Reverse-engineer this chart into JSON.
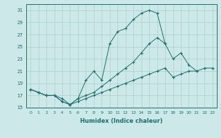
{
  "xlabel": "Humidex (Indice chaleur)",
  "background_color": "#cce8e8",
  "grid_color": "#aacece",
  "line_color": "#1a6e6a",
  "xlim": [
    -0.5,
    23.5
  ],
  "ylim": [
    15,
    32
  ],
  "yticks": [
    15,
    17,
    19,
    21,
    23,
    25,
    27,
    29,
    31
  ],
  "xticks": [
    0,
    1,
    2,
    3,
    4,
    5,
    6,
    7,
    8,
    9,
    10,
    11,
    12,
    13,
    14,
    15,
    16,
    17,
    18,
    19,
    20,
    21,
    22,
    23
  ],
  "curve_peak_x": [
    0,
    1,
    2,
    3,
    4,
    5,
    6,
    7,
    8,
    9,
    10,
    11,
    12,
    13,
    14,
    15,
    16,
    17
  ],
  "curve_peak_y": [
    18.0,
    17.5,
    17.0,
    17.0,
    16.0,
    15.5,
    16.5,
    19.5,
    21.0,
    19.5,
    25.5,
    27.5,
    28.0,
    29.5,
    30.5,
    31.0,
    30.5,
    25.5
  ],
  "curve_mid_x": [
    0,
    1,
    2,
    3,
    4,
    5,
    6,
    7,
    8,
    9,
    10,
    11,
    12,
    13,
    14,
    15,
    16,
    17,
    18,
    19,
    20,
    21
  ],
  "curve_mid_y": [
    18.0,
    17.5,
    17.0,
    17.0,
    16.0,
    15.5,
    16.5,
    17.0,
    17.5,
    18.5,
    19.5,
    20.5,
    21.5,
    22.5,
    24.0,
    25.5,
    26.5,
    25.5,
    23.0,
    24.0,
    22.0,
    21.0
  ],
  "curve_low_x": [
    0,
    1,
    2,
    3,
    4,
    5,
    6,
    7,
    8,
    9,
    10,
    11,
    12,
    13,
    14,
    15,
    16,
    17,
    18,
    19,
    20,
    21,
    22,
    23
  ],
  "curve_low_y": [
    18.0,
    17.5,
    17.0,
    17.0,
    16.5,
    15.5,
    16.0,
    16.5,
    17.0,
    17.5,
    18.0,
    18.5,
    19.0,
    19.5,
    20.0,
    20.5,
    21.0,
    21.5,
    20.0,
    20.5,
    21.0,
    21.0,
    21.5,
    21.5
  ]
}
